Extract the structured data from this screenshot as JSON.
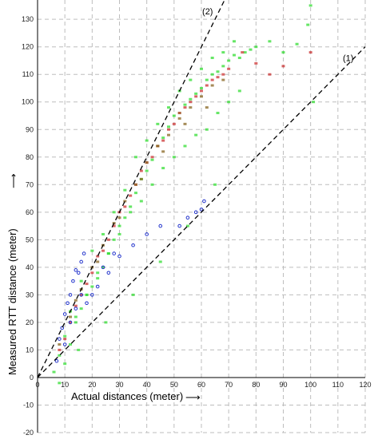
{
  "chart_data": {
    "type": "scatter",
    "title": "",
    "xlabel": "Actual distances (meter)",
    "ylabel": "Measured RTT distance (meter)",
    "x_arrow": "⟶",
    "y_arrow": "⟶",
    "xlim": [
      0,
      120
    ],
    "ylim": [
      -20,
      137
    ],
    "xticks": [
      "0",
      "10",
      "20",
      "30",
      "40",
      "50",
      "60",
      "70",
      "80",
      "90",
      "100",
      "110",
      "120"
    ],
    "yticks": [
      "-20",
      "-10",
      "0",
      "10",
      "20",
      "30",
      "40",
      "50",
      "60",
      "70",
      "80",
      "90",
      "100",
      "110",
      "120",
      "130"
    ],
    "grid": true,
    "legend": "none",
    "colors": {
      "green": "#33dd33",
      "red": "#cc3333",
      "brown": "#886622",
      "blue": "#2233cc",
      "ref_line": "#000000",
      "grid": "#bdbdbd"
    },
    "reference_lines": [
      {
        "label": "(1)",
        "x": [
          0,
          120
        ],
        "y": [
          0,
          120
        ]
      },
      {
        "label": "(2)",
        "x": [
          0,
          70
        ],
        "y": [
          0,
          140
        ]
      }
    ],
    "series": [
      {
        "color": "green",
        "x": [
          6,
          8,
          8,
          10,
          12,
          14,
          16,
          18,
          20,
          22,
          24,
          26,
          28,
          30,
          32,
          34,
          36,
          38,
          40,
          42,
          44,
          46,
          48,
          50,
          52,
          54,
          56,
          58,
          60,
          62,
          64,
          66,
          68,
          70,
          72,
          74,
          76,
          78,
          80,
          85,
          90,
          95,
          99,
          100,
          101,
          12,
          16,
          20,
          24,
          28,
          32,
          36,
          40,
          44,
          48,
          52,
          56,
          60,
          64,
          68,
          72,
          10,
          14,
          18,
          22,
          26,
          30,
          34,
          38,
          42,
          46,
          50,
          54,
          58,
          62,
          66,
          70,
          74,
          15,
          25,
          35,
          45,
          55,
          65
        ],
        "y": [
          2,
          8,
          -2,
          5,
          12,
          20,
          25,
          30,
          33,
          36,
          40,
          45,
          50,
          55,
          58,
          62,
          67,
          72,
          75,
          79,
          84,
          87,
          91,
          95,
          96,
          99,
          101,
          103,
          105,
          108,
          110,
          111,
          113,
          115,
          117,
          116,
          118,
          119,
          120,
          122,
          118,
          121,
          128,
          135,
          100,
          24,
          35,
          46,
          52,
          60,
          68,
          80,
          86,
          92,
          98,
          104,
          108,
          112,
          116,
          118,
          122,
          15,
          22,
          30,
          38,
          45,
          52,
          60,
          64,
          70,
          76,
          80,
          84,
          88,
          90,
          96,
          100,
          104,
          10,
          20,
          30,
          42,
          55,
          70
        ]
      },
      {
        "color": "red",
        "x": [
          8,
          12,
          16,
          20,
          24,
          28,
          32,
          36,
          40,
          44,
          48,
          52,
          56,
          60,
          64,
          68,
          10,
          14,
          18,
          22,
          26,
          30,
          34,
          38,
          42,
          46,
          50,
          54,
          58,
          62,
          66,
          70,
          75,
          80,
          85,
          90,
          100
        ],
        "y": [
          10,
          20,
          30,
          38,
          46,
          55,
          62,
          70,
          78,
          84,
          90,
          96,
          100,
          104,
          108,
          110,
          14,
          26,
          34,
          44,
          50,
          60,
          66,
          75,
          80,
          86,
          92,
          98,
          102,
          106,
          109,
          112,
          118,
          114,
          110,
          113,
          118
        ]
      },
      {
        "color": "brown",
        "x": [
          8,
          12,
          16,
          20,
          24,
          28,
          32,
          36,
          40,
          44,
          48,
          52,
          56,
          60,
          64,
          68,
          14,
          22,
          30,
          38,
          46,
          54,
          62
        ],
        "y": [
          12,
          22,
          32,
          40,
          48,
          56,
          64,
          70,
          78,
          84,
          88,
          94,
          98,
          102,
          106,
          108,
          28,
          42,
          58,
          72,
          82,
          92,
          98
        ]
      },
      {
        "color": "blue",
        "x": [
          7,
          8,
          9,
          10,
          11,
          12,
          13,
          14,
          15,
          16,
          17,
          18,
          20,
          22,
          24,
          26,
          28,
          30,
          35,
          40,
          45,
          52,
          55,
          58,
          60,
          61,
          10,
          12,
          14,
          16
        ],
        "y": [
          6,
          14,
          18,
          23,
          27,
          30,
          35,
          39,
          38,
          42,
          45,
          27,
          30,
          33,
          40,
          38,
          45,
          44,
          48,
          52,
          55,
          55,
          58,
          60,
          61,
          64,
          12,
          20,
          25,
          30
        ]
      }
    ]
  }
}
